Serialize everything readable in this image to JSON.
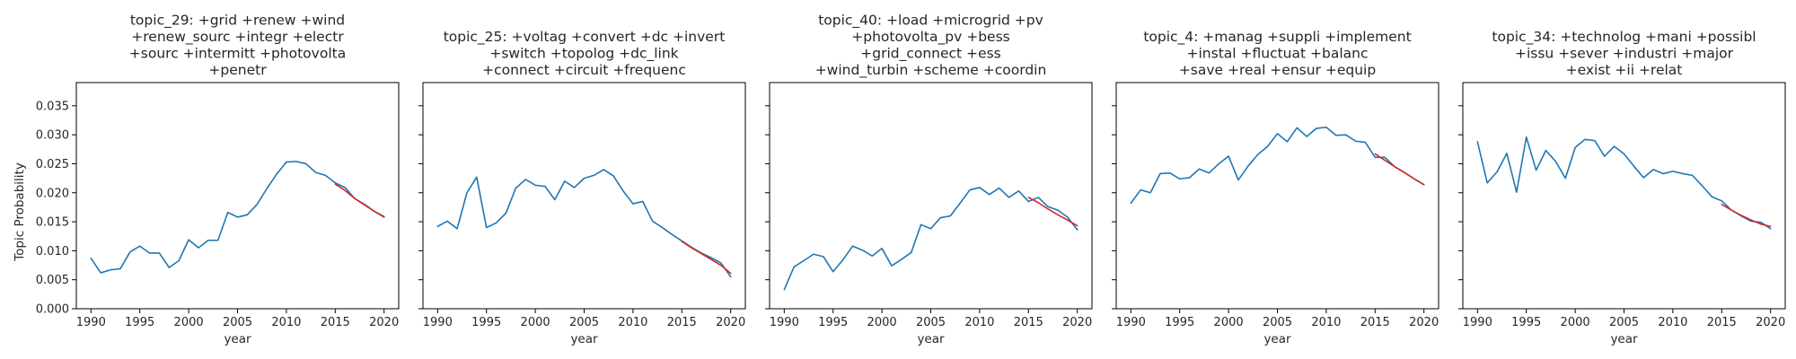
{
  "colors": {
    "observed": "#1f77b4",
    "forecast": "#d62728"
  },
  "ylabel": "Topic Probability",
  "chart_data": [
    {
      "type": "line",
      "title_lines": [
        "topic_29: +grid +renew +wind",
        "+renew_sourc +integr +electr",
        "+sourc +intermitt +photovolta",
        "+penetr"
      ],
      "xlabel": "year",
      "xlim": [
        1988.5,
        2021.5
      ],
      "ylim": [
        0,
        0.039
      ],
      "x_ticks": [
        "1990",
        "1995",
        "2000",
        "2005",
        "2010",
        "2015",
        "2020"
      ],
      "y_ticks": [
        "0.000",
        "0.005",
        "0.010",
        "0.015",
        "0.020",
        "0.025",
        "0.030",
        "0.035"
      ],
      "series": [
        {
          "x": [
            1990,
            1991,
            1992,
            1993,
            1994,
            1995,
            1996,
            1997,
            1998,
            1999,
            2000,
            2001,
            2002,
            2003,
            2004,
            2005,
            2006,
            2007,
            2008,
            2009,
            2010,
            2011,
            2012,
            2013,
            2014,
            2015,
            2016,
            2017,
            2018,
            2019,
            2020
          ],
          "y": [
            0.0087,
            0.0062,
            0.0067,
            0.0069,
            0.0098,
            0.0108,
            0.0096,
            0.0096,
            0.0071,
            0.0083,
            0.0119,
            0.0105,
            0.0118,
            0.0118,
            0.0166,
            0.0158,
            0.0162,
            0.018,
            0.0207,
            0.0232,
            0.0253,
            0.0254,
            0.025,
            0.0235,
            0.023,
            0.0217,
            0.0209,
            0.019,
            0.018,
            0.0168,
            0.0159
          ]
        },
        {
          "x": [
            2015,
            2016,
            2017,
            2018,
            2019,
            2020
          ],
          "y": [
            0.0215,
            0.0204,
            0.019,
            0.0179,
            0.0168,
            0.0158
          ]
        }
      ]
    },
    {
      "type": "line",
      "title_lines": [
        "topic_25: +voltag +convert +dc +invert",
        "+switch +topolog +dc_link",
        "+connect +circuit +frequenc"
      ],
      "xlabel": "year",
      "xlim": [
        1988.5,
        2021.5
      ],
      "ylim": [
        0,
        0.039
      ],
      "x_ticks": [
        "1990",
        "1995",
        "2000",
        "2005",
        "2010",
        "2015",
        "2020"
      ],
      "y_ticks": [],
      "series": [
        {
          "x": [
            1990,
            1991,
            1992,
            1993,
            1994,
            1995,
            1996,
            1997,
            1998,
            1999,
            2000,
            2001,
            2002,
            2003,
            2004,
            2005,
            2006,
            2007,
            2008,
            2009,
            2010,
            2011,
            2012,
            2013,
            2014,
            2015,
            2016,
            2017,
            2018,
            2019,
            2020
          ],
          "y": [
            0.0142,
            0.0151,
            0.0138,
            0.02,
            0.0227,
            0.014,
            0.0148,
            0.0165,
            0.0208,
            0.0223,
            0.0213,
            0.0211,
            0.0188,
            0.022,
            0.0209,
            0.0225,
            0.023,
            0.024,
            0.0229,
            0.0203,
            0.0181,
            0.0185,
            0.0151,
            0.014,
            0.0128,
            0.0117,
            0.0106,
            0.0096,
            0.0088,
            0.0079,
            0.0055
          ]
        },
        {
          "x": [
            2015,
            2016,
            2017,
            2018,
            2019,
            2020
          ],
          "y": [
            0.0116,
            0.0105,
            0.0095,
            0.0085,
            0.0075,
            0.0061
          ]
        }
      ]
    },
    {
      "type": "line",
      "title_lines": [
        "topic_40: +load +microgrid +pv",
        "+photovolta_pv +bess",
        "+grid_connect +ess",
        "+wind_turbin +scheme +coordin"
      ],
      "xlabel": "year",
      "xlim": [
        1988.5,
        2021.5
      ],
      "ylim": [
        0,
        0.039
      ],
      "x_ticks": [
        "1990",
        "1995",
        "2000",
        "2005",
        "2010",
        "2015",
        "2020"
      ],
      "y_ticks": [],
      "series": [
        {
          "x": [
            1990,
            1991,
            1992,
            1993,
            1994,
            1995,
            1996,
            1997,
            1998,
            1999,
            2000,
            2001,
            2002,
            2003,
            2004,
            2005,
            2006,
            2007,
            2008,
            2009,
            2010,
            2011,
            2012,
            2013,
            2014,
            2015,
            2016,
            2017,
            2018,
            2019,
            2020
          ],
          "y": [
            0.0033,
            0.0072,
            0.0083,
            0.0094,
            0.009,
            0.0064,
            0.0084,
            0.0108,
            0.0101,
            0.0091,
            0.0104,
            0.0074,
            0.0085,
            0.0097,
            0.0145,
            0.0138,
            0.0157,
            0.016,
            0.0182,
            0.0205,
            0.0209,
            0.0197,
            0.0208,
            0.0192,
            0.0203,
            0.0185,
            0.0192,
            0.0176,
            0.017,
            0.0158,
            0.0136
          ]
        },
        {
          "x": [
            2015,
            2016,
            2017,
            2018,
            2019,
            2020
          ],
          "y": [
            0.0192,
            0.0183,
            0.0172,
            0.0162,
            0.0153,
            0.0143
          ]
        }
      ]
    },
    {
      "type": "line",
      "title_lines": [
        "topic_4: +manag +suppli +implement",
        "+instal +fluctuat +balanc",
        "+save +real +ensur +equip"
      ],
      "xlabel": "year",
      "xlim": [
        1988.5,
        2021.5
      ],
      "ylim": [
        0,
        0.039
      ],
      "x_ticks": [
        "1990",
        "1995",
        "2000",
        "2005",
        "2010",
        "2015",
        "2020"
      ],
      "y_ticks": [],
      "series": [
        {
          "x": [
            1990,
            1991,
            1992,
            1993,
            1994,
            1995,
            1996,
            1997,
            1998,
            1999,
            2000,
            2001,
            2002,
            2003,
            2004,
            2005,
            2006,
            2007,
            2008,
            2009,
            2010,
            2011,
            2012,
            2013,
            2014,
            2015,
            2016,
            2017,
            2018,
            2019,
            2020
          ],
          "y": [
            0.0182,
            0.0205,
            0.02,
            0.0233,
            0.0234,
            0.0224,
            0.0226,
            0.0241,
            0.0234,
            0.025,
            0.0263,
            0.0222,
            0.0246,
            0.0266,
            0.028,
            0.0302,
            0.0288,
            0.0312,
            0.0297,
            0.0311,
            0.0313,
            0.0299,
            0.03,
            0.0289,
            0.0287,
            0.0261,
            0.0261,
            0.0245,
            0.0235,
            0.0224,
            0.0214
          ]
        },
        {
          "x": [
            2015,
            2016,
            2017,
            2018,
            2019,
            2020
          ],
          "y": [
            0.0267,
            0.0256,
            0.0245,
            0.0235,
            0.0224,
            0.0214
          ]
        }
      ]
    },
    {
      "type": "line",
      "title_lines": [
        "topic_34: +technolog +mani +possibl",
        "+issu +sever +industri +major",
        "+exist +ii +relat"
      ],
      "xlabel": "year",
      "xlim": [
        1988.5,
        2021.5
      ],
      "ylim": [
        0,
        0.039
      ],
      "x_ticks": [
        "1990",
        "1995",
        "2000",
        "2005",
        "2010",
        "2015",
        "2020"
      ],
      "y_ticks": [],
      "series": [
        {
          "x": [
            1990,
            1991,
            1992,
            1993,
            1994,
            1995,
            1996,
            1997,
            1998,
            1999,
            2000,
            2001,
            2002,
            2003,
            2004,
            2005,
            2006,
            2007,
            2008,
            2009,
            2010,
            2011,
            2012,
            2013,
            2014,
            2015,
            2016,
            2017,
            2018,
            2019,
            2020
          ],
          "y": [
            0.0288,
            0.0217,
            0.0236,
            0.0268,
            0.0201,
            0.0296,
            0.0239,
            0.0273,
            0.0254,
            0.0225,
            0.0278,
            0.0292,
            0.029,
            0.0263,
            0.028,
            0.0267,
            0.0246,
            0.0226,
            0.024,
            0.0233,
            0.0237,
            0.0233,
            0.023,
            0.0212,
            0.0193,
            0.0186,
            0.017,
            0.016,
            0.0151,
            0.0149,
            0.0138
          ]
        },
        {
          "x": [
            2015,
            2016,
            2017,
            2018,
            2019,
            2020
          ],
          "y": [
            0.018,
            0.017,
            0.0161,
            0.0153,
            0.0146,
            0.0142
          ]
        }
      ]
    }
  ]
}
